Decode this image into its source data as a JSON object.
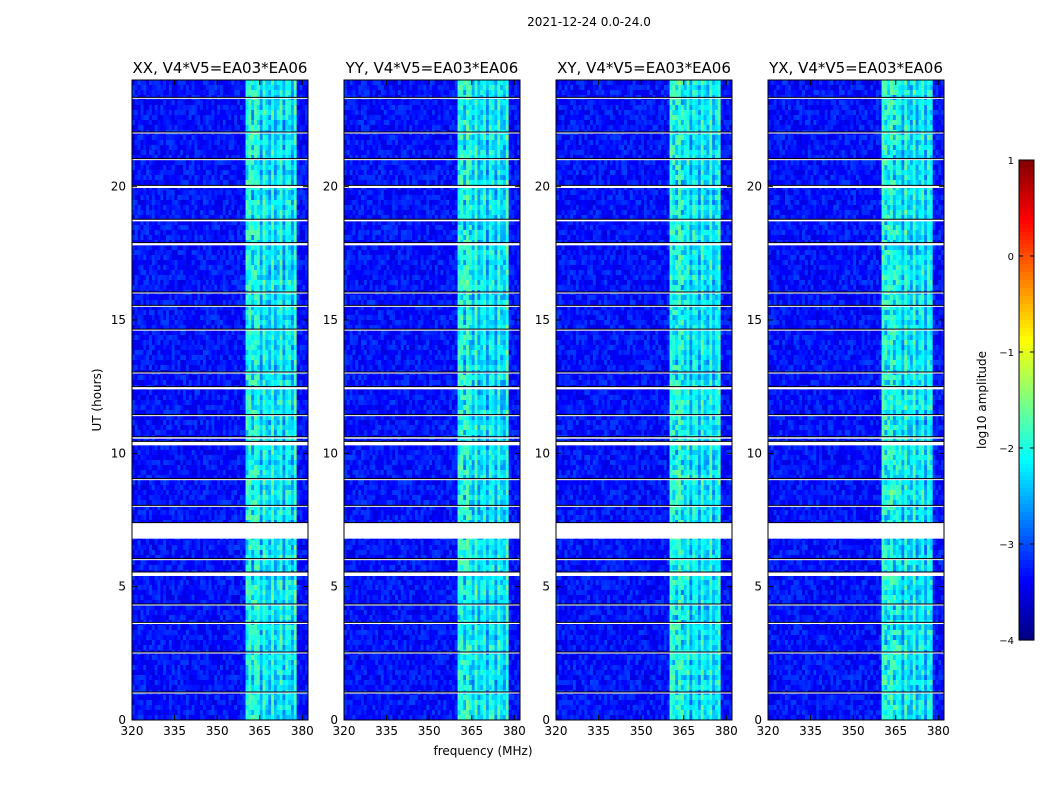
{
  "figure_title": "2021-12-24 0.0-24.0",
  "chart_data": {
    "type": "heatmap",
    "xlabel": "frequency (MHz)",
    "ylabel": "UT (hours)",
    "xlim": [
      320,
      382
    ],
    "ylim": [
      0,
      24
    ],
    "x_ticks": [
      320,
      335,
      350,
      365,
      380
    ],
    "y_ticks": [
      0,
      5,
      10,
      15,
      20
    ],
    "panels": [
      {
        "title": "XX, V4*V5=EA03*EA06"
      },
      {
        "title": "YY, V4*V5=EA03*EA06"
      },
      {
        "title": "XY, V4*V5=EA03*EA06"
      },
      {
        "title": "YX, V4*V5=EA03*EA06"
      }
    ],
    "colorbar": {
      "label": "log10 amplitude",
      "range": [
        -4,
        1
      ],
      "ticks": [
        1,
        0,
        -1,
        -2,
        -3,
        -4
      ],
      "tick_labels": [
        "1",
        "0",
        "−1",
        "−2",
        "−3",
        "−4"
      ],
      "colormap": "jet"
    },
    "background_level": -3.3,
    "rfi_band_mhz": [
      360,
      378
    ],
    "rfi_band_level": -2.2,
    "rfi_peak_band_mhz": [
      360,
      365
    ],
    "rfi_peak_level": -1.8,
    "flagged_intervals_hours": [
      [
        6.8,
        7.4
      ],
      [
        5.4,
        5.55
      ],
      [
        10.3,
        10.45
      ],
      [
        10.55,
        10.62
      ],
      [
        19.95,
        20.05
      ],
      [
        18.7,
        18.78
      ],
      [
        17.8,
        17.9
      ],
      [
        12.4,
        12.5
      ],
      [
        14.6,
        14.66
      ],
      [
        16.0,
        16.05
      ],
      [
        21.0,
        21.05
      ],
      [
        22.0,
        22.05
      ],
      [
        23.3,
        23.35
      ],
      [
        3.6,
        3.66
      ],
      [
        2.5,
        2.55
      ],
      [
        1.0,
        1.05
      ],
      [
        6.0,
        6.05
      ],
      [
        8.0,
        8.05
      ],
      [
        13.0,
        13.05
      ],
      [
        15.5,
        15.55
      ],
      [
        11.4,
        11.45
      ],
      [
        4.3,
        4.35
      ],
      [
        9.0,
        9.05
      ]
    ]
  }
}
